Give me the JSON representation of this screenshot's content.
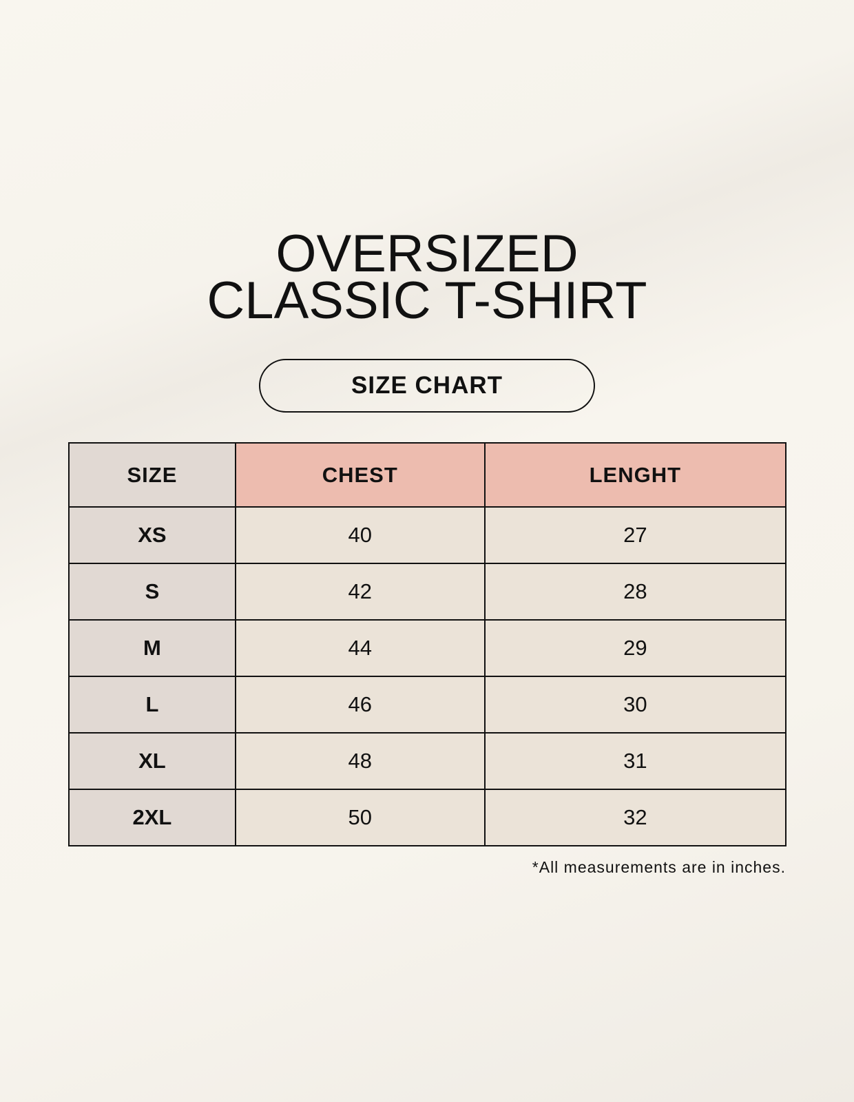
{
  "title": {
    "line1": "OVERSIZED",
    "line2": "CLASSIC T-SHIRT"
  },
  "badge": "SIZE CHART",
  "table": {
    "headers": [
      "SIZE",
      "CHEST",
      "LENGHT"
    ],
    "rows": [
      [
        "XS",
        "40",
        "27"
      ],
      [
        "S",
        "42",
        "28"
      ],
      [
        "M",
        "44",
        "29"
      ],
      [
        "L",
        "46",
        "30"
      ],
      [
        "XL",
        "48",
        "31"
      ],
      [
        "2XL",
        "50",
        "32"
      ]
    ]
  },
  "footnote": "*All measurements are in inches.",
  "colors": {
    "size_column": "#e1d9d3",
    "header_accent": "#edbcaf",
    "value_cells": "#ebe3d8"
  }
}
